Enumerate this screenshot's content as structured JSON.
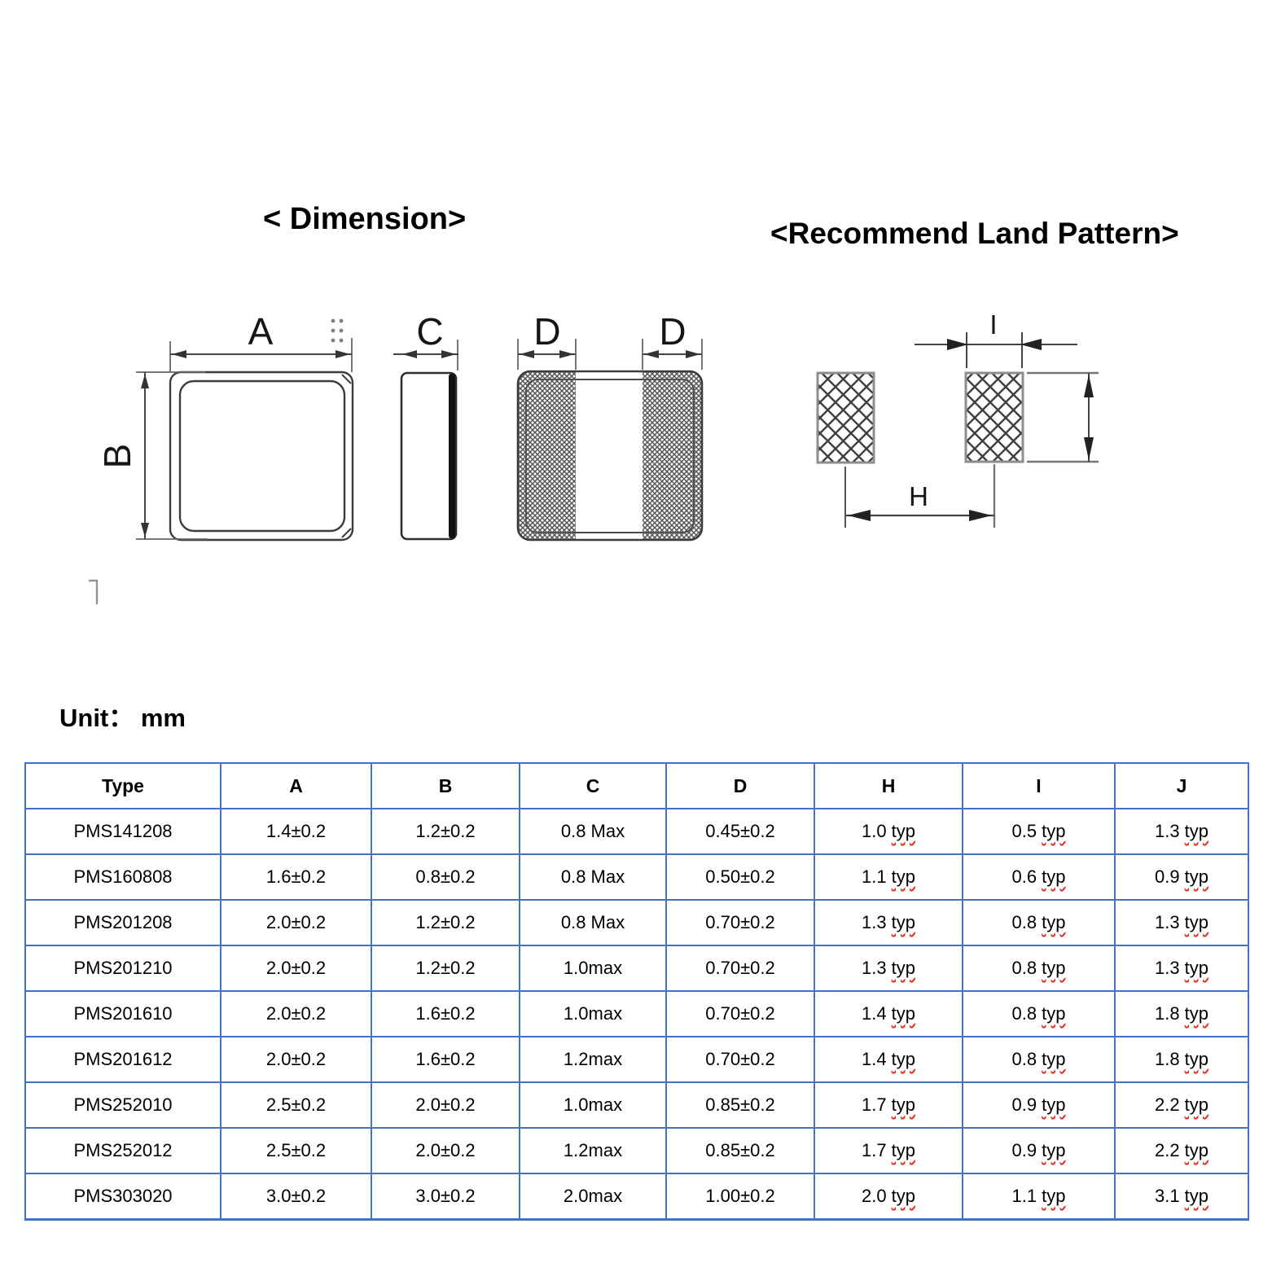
{
  "titles": {
    "dimension": "< Dimension>",
    "land_pattern": "<Recommend Land Pattern>"
  },
  "unit_label": "Unit： mm",
  "diagram_labels": {
    "a": "A",
    "b": "B",
    "c": "C",
    "d": "D",
    "i": "I",
    "h": "H"
  },
  "colors": {
    "table_border": "#4472c4",
    "typ_underline": "#e0301e"
  },
  "table": {
    "headers": [
      "Type",
      "A",
      "B",
      "C",
      "D",
      "H",
      "I",
      "J"
    ],
    "rows": [
      [
        "PMS141208",
        "1.4±0.2",
        "1.2±0.2",
        "0.8 Max",
        "0.45±0.2",
        "1.0 typ",
        "0.5 typ",
        "1.3 typ"
      ],
      [
        "PMS160808",
        "1.6±0.2",
        "0.8±0.2",
        "0.8 Max",
        "0.50±0.2",
        "1.1 typ",
        "0.6 typ",
        "0.9 typ"
      ],
      [
        "PMS201208",
        "2.0±0.2",
        "1.2±0.2",
        "0.8 Max",
        "0.70±0.2",
        "1.3 typ",
        "0.8 typ",
        "1.3 typ"
      ],
      [
        "PMS201210",
        "2.0±0.2",
        "1.2±0.2",
        "1.0max",
        "0.70±0.2",
        "1.3 typ",
        "0.8 typ",
        "1.3 typ"
      ],
      [
        "PMS201610",
        "2.0±0.2",
        "1.6±0.2",
        "1.0max",
        "0.70±0.2",
        "1.4 typ",
        "0.8 typ",
        "1.8 typ"
      ],
      [
        "PMS201612",
        "2.0±0.2",
        "1.6±0.2",
        "1.2max",
        "0.70±0.2",
        "1.4 typ",
        "0.8 typ",
        "1.8 typ"
      ],
      [
        "PMS252010",
        "2.5±0.2",
        "2.0±0.2",
        "1.0max",
        "0.85±0.2",
        "1.7 typ",
        "0.9 typ",
        "2.2 typ"
      ],
      [
        "PMS252012",
        "2.5±0.2",
        "2.0±0.2",
        "1.2max",
        "0.85±0.2",
        "1.7 typ",
        "0.9 typ",
        "2.2 typ"
      ],
      [
        "PMS303020",
        "3.0±0.2",
        "3.0±0.2",
        "2.0max",
        "1.00±0.2",
        "2.0 typ",
        "1.1 typ",
        "3.1 typ"
      ]
    ]
  }
}
